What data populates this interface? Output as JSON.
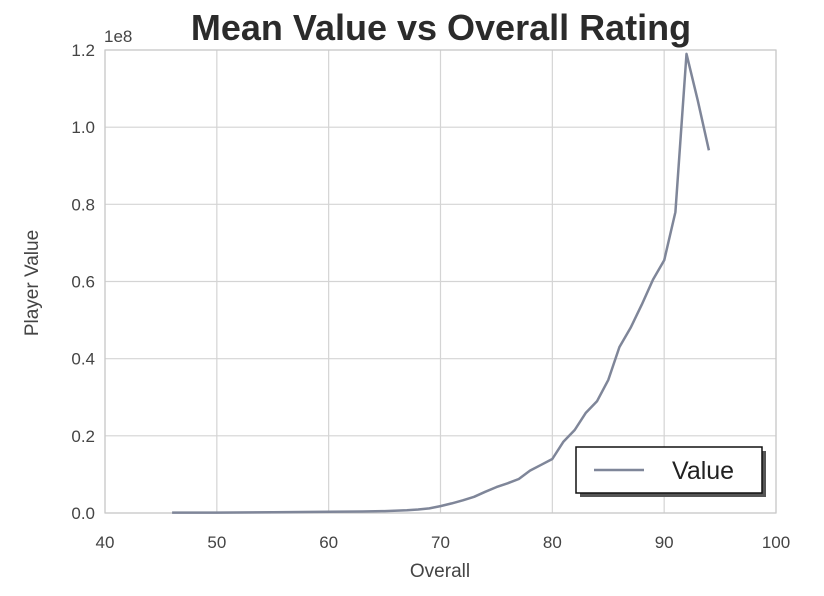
{
  "chart_data": {
    "type": "line",
    "title": "Mean Value vs Overall Rating",
    "xlabel": "Overall",
    "ylabel": "Player Value",
    "y_offset_label": "1e8",
    "xlim": [
      40,
      100
    ],
    "ylim": [
      0,
      1.2
    ],
    "x_ticks": [
      40,
      50,
      60,
      70,
      80,
      90,
      100
    ],
    "x_tick_labels": [
      "40",
      "50",
      "60",
      "70",
      "80",
      "90",
      "100"
    ],
    "y_ticks": [
      0,
      0.2,
      0.4,
      0.6,
      0.8,
      1.0,
      1.2
    ],
    "y_tick_labels": [
      "0.0",
      "0.2",
      "0.4",
      "0.6",
      "0.8",
      "1.0",
      "1.2"
    ],
    "grid": true,
    "legend_position": "lower-right",
    "series": [
      {
        "name": "Value",
        "color": "#7f8699",
        "x": [
          46,
          50,
          55,
          60,
          63,
          65,
          67,
          68,
          69,
          70,
          71,
          72,
          73,
          74,
          75,
          76,
          77,
          78,
          79,
          80,
          81,
          82,
          83,
          84,
          85,
          86,
          87,
          88,
          89,
          90,
          91,
          92,
          93,
          94
        ],
        "y": [
          0.001,
          0.001,
          0.002,
          0.003,
          0.004,
          0.005,
          0.007,
          0.009,
          0.012,
          0.018,
          0.025,
          0.033,
          0.042,
          0.055,
          0.067,
          0.077,
          0.088,
          0.11,
          0.125,
          0.14,
          0.185,
          0.215,
          0.26,
          0.29,
          0.345,
          0.43,
          0.48,
          0.54,
          0.605,
          0.655,
          0.78,
          1.19,
          1.07,
          0.94
        ]
      }
    ]
  }
}
